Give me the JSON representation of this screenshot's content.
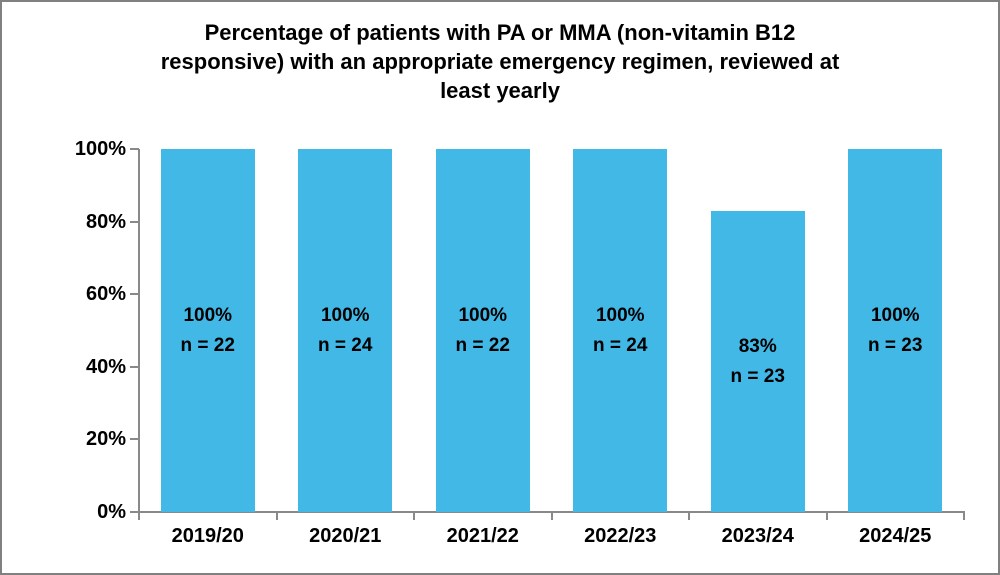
{
  "page": {
    "background_color": "#ffffff",
    "frame_border_color": "#808080"
  },
  "chart_data": {
    "type": "bar",
    "title": "Percentage of patients with PA or MMA (non-vitamin B12 responsive) with an appropriate emergency regimen, reviewed at least yearly",
    "title_lines": [
      "Percentage of patients with PA or MMA (non-vitamin B12",
      "responsive) with an appropriate emergency regimen, reviewed at",
      "least yearly"
    ],
    "categories": [
      "2019/20",
      "2020/21",
      "2021/22",
      "2022/23",
      "2023/24",
      "2024/25"
    ],
    "values": [
      100,
      100,
      100,
      100,
      83,
      100
    ],
    "bar_labels": [
      {
        "percent": "100%",
        "n": "n = 22"
      },
      {
        "percent": "100%",
        "n": "n = 24"
      },
      {
        "percent": "100%",
        "n": "n = 22"
      },
      {
        "percent": "100%",
        "n": "n = 24"
      },
      {
        "percent": "83%",
        "n": "n = 23"
      },
      {
        "percent": "100%",
        "n": "n = 23"
      }
    ],
    "y_ticks": [
      {
        "label": "0%",
        "value": 0
      },
      {
        "label": "20%",
        "value": 20
      },
      {
        "label": "40%",
        "value": 40
      },
      {
        "label": "60%",
        "value": 60
      },
      {
        "label": "80%",
        "value": 80
      },
      {
        "label": "100%",
        "value": 100
      }
    ],
    "ylim": [
      0,
      100
    ],
    "xlabel": "",
    "ylabel": "",
    "grid": false,
    "legend": false,
    "bar_color": "#41B8E6",
    "axis_color": "#898989",
    "text_color": "#000000"
  }
}
